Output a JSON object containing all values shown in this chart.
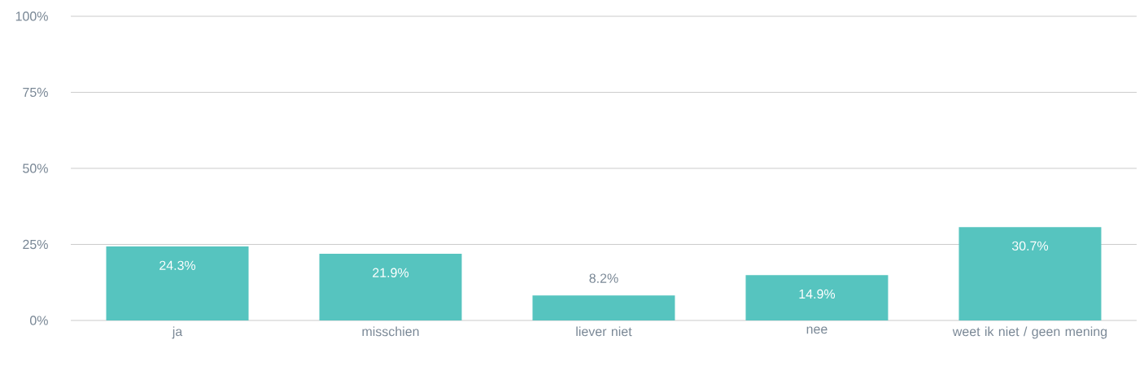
{
  "chart_data": {
    "type": "bar",
    "categories": [
      "ja",
      "misschien",
      "liever niet",
      "nee",
      "weet ik niet / geen mening"
    ],
    "values": [
      24.3,
      21.9,
      8.2,
      14.9,
      30.7
    ],
    "value_labels": [
      "24.3%",
      "21.9%",
      "8.2%",
      "14.9%",
      "30.7%"
    ],
    "color": "#56c4bf",
    "ylim": [
      0,
      100
    ],
    "yticks": [
      {
        "value": 0,
        "label": "0%"
      },
      {
        "value": 25,
        "label": "25%"
      },
      {
        "value": 50,
        "label": "50%"
      },
      {
        "value": 75,
        "label": "75%"
      },
      {
        "value": 100,
        "label": "100%"
      }
    ],
    "grid": "y"
  }
}
